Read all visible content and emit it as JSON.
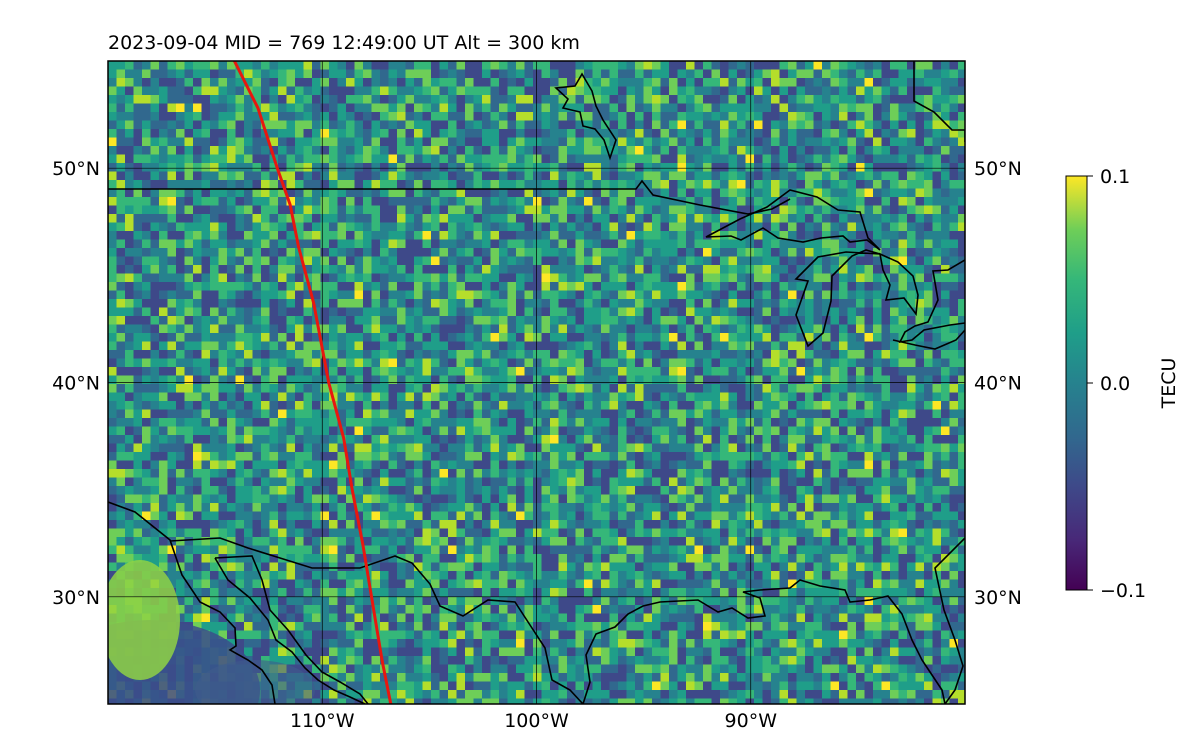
{
  "title": "2023-09-04  MID = 769    12:49:00  UT  Alt = 300 km",
  "map": {
    "lon_range": [
      -120,
      -80
    ],
    "lat_range": [
      25,
      55
    ],
    "lon_ticks": [
      {
        "value": -110,
        "label": "110°W"
      },
      {
        "value": -100,
        "label": "100°W"
      },
      {
        "value": -90,
        "label": "90°W"
      }
    ],
    "lat_ticks": [
      {
        "value": 30,
        "label": "30°N"
      },
      {
        "value": 40,
        "label": "40°N"
      },
      {
        "value": 50,
        "label": "50°N"
      }
    ],
    "grid": true,
    "field": "TEC perturbation (dTEC), viridis colormap, mostly near 0 with scattered noise",
    "track_color": "#e8170f",
    "track": [
      [
        -114.1,
        55.0
      ],
      [
        -113.0,
        52.8
      ],
      [
        -112.1,
        50.0
      ],
      [
        -111.5,
        48.3
      ],
      [
        -111.1,
        46.3
      ],
      [
        -110.4,
        43.7
      ],
      [
        -109.7,
        40.0
      ],
      [
        -109.0,
        37.4
      ],
      [
        -108.6,
        35.0
      ],
      [
        -108.1,
        32.4
      ],
      [
        -107.7,
        30.0
      ],
      [
        -107.2,
        27.0
      ],
      [
        -106.8,
        25.0
      ]
    ]
  },
  "colorbar": {
    "label": "TECU",
    "min": -0.1,
    "max": 0.1,
    "ticks": [
      {
        "value": 0.1,
        "label": "0.1"
      },
      {
        "value": 0.0,
        "label": "0.0"
      },
      {
        "value": -0.1,
        "label": "−0.1"
      }
    ],
    "colormap": "viridis"
  }
}
